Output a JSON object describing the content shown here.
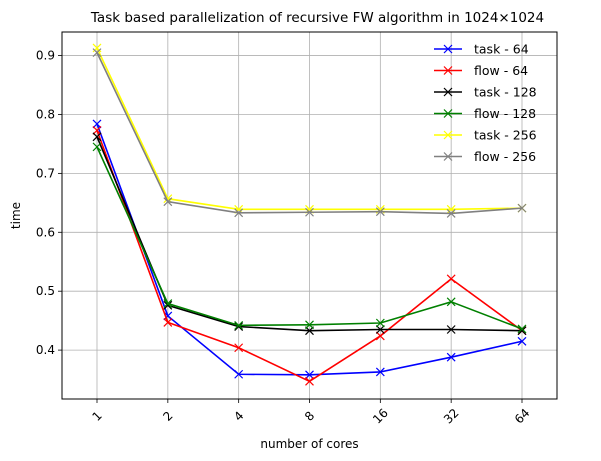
{
  "chart_data": {
    "type": "line",
    "title": "Task based parallelization of recursive FW algorithm in 1024×1024",
    "xlabel": "number of cores",
    "ylabel": "time",
    "categories": [
      "1",
      "2",
      "4",
      "8",
      "16",
      "32",
      "64"
    ],
    "ylim": [
      0.317,
      0.94
    ],
    "yticks": [
      0.4,
      0.5,
      0.6,
      0.7,
      0.8,
      0.9
    ],
    "ytick_labels": [
      "0.4",
      "0.5",
      "0.6",
      "0.7",
      "0.8",
      "0.9"
    ],
    "grid": true,
    "legend_position": "top-right",
    "series": [
      {
        "name": "task - 64",
        "color": "#0000ff",
        "values": [
          0.784,
          0.458,
          0.359,
          0.358,
          0.363,
          0.388,
          0.415
        ]
      },
      {
        "name": "flow - 64",
        "color": "#ff0000",
        "values": [
          0.773,
          0.447,
          0.404,
          0.347,
          0.424,
          0.521,
          0.433
        ]
      },
      {
        "name": "task - 128",
        "color": "#000000",
        "values": [
          0.762,
          0.476,
          0.44,
          0.433,
          0.435,
          0.435,
          0.433
        ]
      },
      {
        "name": "flow - 128",
        "color": "#008000",
        "values": [
          0.745,
          0.479,
          0.442,
          0.443,
          0.446,
          0.482,
          0.436
        ]
      },
      {
        "name": "task - 256",
        "color": "#ffff00",
        "values": [
          0.913,
          0.657,
          0.639,
          0.639,
          0.639,
          0.639,
          0.641
        ]
      },
      {
        "name": "flow - 256",
        "color": "#808080",
        "values": [
          0.905,
          0.652,
          0.633,
          0.634,
          0.635,
          0.632,
          0.641
        ]
      }
    ]
  }
}
